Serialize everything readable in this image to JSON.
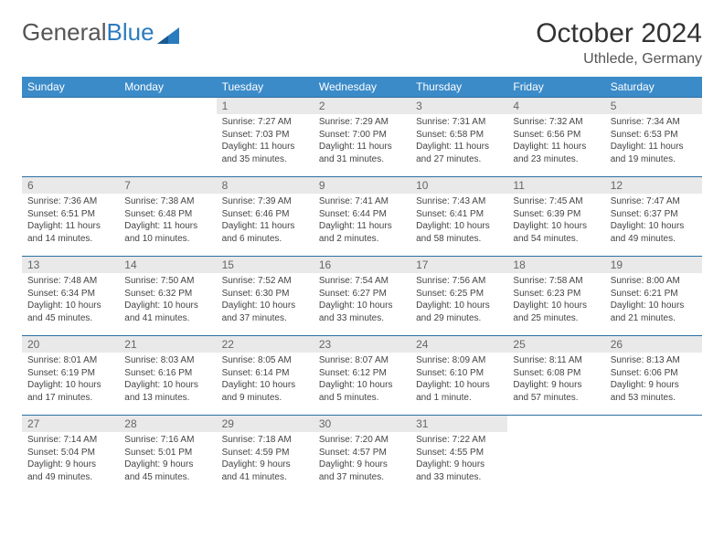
{
  "brand": {
    "part1": "General",
    "part2": "Blue"
  },
  "title": "October 2024",
  "location": "Uthlede, Germany",
  "colors": {
    "header_bg": "#3b8bc9",
    "daynum_bg": "#e9e9e9",
    "row_border": "#2b6fa3"
  },
  "dayHeaders": [
    "Sunday",
    "Monday",
    "Tuesday",
    "Wednesday",
    "Thursday",
    "Friday",
    "Saturday"
  ],
  "weeks": [
    [
      {
        "n": "",
        "sr": "",
        "ss": "",
        "dl": ""
      },
      {
        "n": "",
        "sr": "",
        "ss": "",
        "dl": ""
      },
      {
        "n": "1",
        "sr": "Sunrise: 7:27 AM",
        "ss": "Sunset: 7:03 PM",
        "dl": "Daylight: 11 hours and 35 minutes."
      },
      {
        "n": "2",
        "sr": "Sunrise: 7:29 AM",
        "ss": "Sunset: 7:00 PM",
        "dl": "Daylight: 11 hours and 31 minutes."
      },
      {
        "n": "3",
        "sr": "Sunrise: 7:31 AM",
        "ss": "Sunset: 6:58 PM",
        "dl": "Daylight: 11 hours and 27 minutes."
      },
      {
        "n": "4",
        "sr": "Sunrise: 7:32 AM",
        "ss": "Sunset: 6:56 PM",
        "dl": "Daylight: 11 hours and 23 minutes."
      },
      {
        "n": "5",
        "sr": "Sunrise: 7:34 AM",
        "ss": "Sunset: 6:53 PM",
        "dl": "Daylight: 11 hours and 19 minutes."
      }
    ],
    [
      {
        "n": "6",
        "sr": "Sunrise: 7:36 AM",
        "ss": "Sunset: 6:51 PM",
        "dl": "Daylight: 11 hours and 14 minutes."
      },
      {
        "n": "7",
        "sr": "Sunrise: 7:38 AM",
        "ss": "Sunset: 6:48 PM",
        "dl": "Daylight: 11 hours and 10 minutes."
      },
      {
        "n": "8",
        "sr": "Sunrise: 7:39 AM",
        "ss": "Sunset: 6:46 PM",
        "dl": "Daylight: 11 hours and 6 minutes."
      },
      {
        "n": "9",
        "sr": "Sunrise: 7:41 AM",
        "ss": "Sunset: 6:44 PM",
        "dl": "Daylight: 11 hours and 2 minutes."
      },
      {
        "n": "10",
        "sr": "Sunrise: 7:43 AM",
        "ss": "Sunset: 6:41 PM",
        "dl": "Daylight: 10 hours and 58 minutes."
      },
      {
        "n": "11",
        "sr": "Sunrise: 7:45 AM",
        "ss": "Sunset: 6:39 PM",
        "dl": "Daylight: 10 hours and 54 minutes."
      },
      {
        "n": "12",
        "sr": "Sunrise: 7:47 AM",
        "ss": "Sunset: 6:37 PM",
        "dl": "Daylight: 10 hours and 49 minutes."
      }
    ],
    [
      {
        "n": "13",
        "sr": "Sunrise: 7:48 AM",
        "ss": "Sunset: 6:34 PM",
        "dl": "Daylight: 10 hours and 45 minutes."
      },
      {
        "n": "14",
        "sr": "Sunrise: 7:50 AM",
        "ss": "Sunset: 6:32 PM",
        "dl": "Daylight: 10 hours and 41 minutes."
      },
      {
        "n": "15",
        "sr": "Sunrise: 7:52 AM",
        "ss": "Sunset: 6:30 PM",
        "dl": "Daylight: 10 hours and 37 minutes."
      },
      {
        "n": "16",
        "sr": "Sunrise: 7:54 AM",
        "ss": "Sunset: 6:27 PM",
        "dl": "Daylight: 10 hours and 33 minutes."
      },
      {
        "n": "17",
        "sr": "Sunrise: 7:56 AM",
        "ss": "Sunset: 6:25 PM",
        "dl": "Daylight: 10 hours and 29 minutes."
      },
      {
        "n": "18",
        "sr": "Sunrise: 7:58 AM",
        "ss": "Sunset: 6:23 PM",
        "dl": "Daylight: 10 hours and 25 minutes."
      },
      {
        "n": "19",
        "sr": "Sunrise: 8:00 AM",
        "ss": "Sunset: 6:21 PM",
        "dl": "Daylight: 10 hours and 21 minutes."
      }
    ],
    [
      {
        "n": "20",
        "sr": "Sunrise: 8:01 AM",
        "ss": "Sunset: 6:19 PM",
        "dl": "Daylight: 10 hours and 17 minutes."
      },
      {
        "n": "21",
        "sr": "Sunrise: 8:03 AM",
        "ss": "Sunset: 6:16 PM",
        "dl": "Daylight: 10 hours and 13 minutes."
      },
      {
        "n": "22",
        "sr": "Sunrise: 8:05 AM",
        "ss": "Sunset: 6:14 PM",
        "dl": "Daylight: 10 hours and 9 minutes."
      },
      {
        "n": "23",
        "sr": "Sunrise: 8:07 AM",
        "ss": "Sunset: 6:12 PM",
        "dl": "Daylight: 10 hours and 5 minutes."
      },
      {
        "n": "24",
        "sr": "Sunrise: 8:09 AM",
        "ss": "Sunset: 6:10 PM",
        "dl": "Daylight: 10 hours and 1 minute."
      },
      {
        "n": "25",
        "sr": "Sunrise: 8:11 AM",
        "ss": "Sunset: 6:08 PM",
        "dl": "Daylight: 9 hours and 57 minutes."
      },
      {
        "n": "26",
        "sr": "Sunrise: 8:13 AM",
        "ss": "Sunset: 6:06 PM",
        "dl": "Daylight: 9 hours and 53 minutes."
      }
    ],
    [
      {
        "n": "27",
        "sr": "Sunrise: 7:14 AM",
        "ss": "Sunset: 5:04 PM",
        "dl": "Daylight: 9 hours and 49 minutes."
      },
      {
        "n": "28",
        "sr": "Sunrise: 7:16 AM",
        "ss": "Sunset: 5:01 PM",
        "dl": "Daylight: 9 hours and 45 minutes."
      },
      {
        "n": "29",
        "sr": "Sunrise: 7:18 AM",
        "ss": "Sunset: 4:59 PM",
        "dl": "Daylight: 9 hours and 41 minutes."
      },
      {
        "n": "30",
        "sr": "Sunrise: 7:20 AM",
        "ss": "Sunset: 4:57 PM",
        "dl": "Daylight: 9 hours and 37 minutes."
      },
      {
        "n": "31",
        "sr": "Sunrise: 7:22 AM",
        "ss": "Sunset: 4:55 PM",
        "dl": "Daylight: 9 hours and 33 minutes."
      },
      {
        "n": "",
        "sr": "",
        "ss": "",
        "dl": ""
      },
      {
        "n": "",
        "sr": "",
        "ss": "",
        "dl": ""
      }
    ]
  ]
}
